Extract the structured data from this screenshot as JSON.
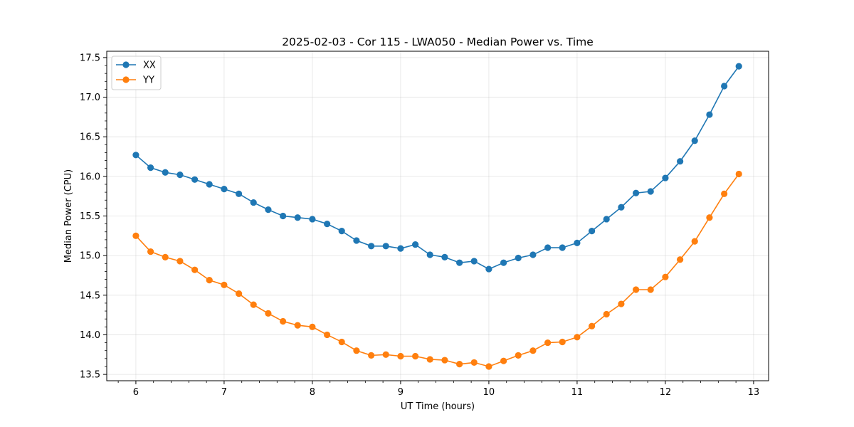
{
  "chart_data": {
    "type": "line",
    "title": "2025-02-03 - Cor 115 - LWA050 - Median Power vs. Time",
    "xlabel": "UT Time (hours)",
    "ylabel": "Median Power (CPU)",
    "xlim": [
      5.67,
      13.17
    ],
    "ylim": [
      13.42,
      17.58
    ],
    "xticks": [
      6,
      7,
      8,
      9,
      10,
      11,
      12,
      13
    ],
    "xtick_labels": [
      "6",
      "7",
      "8",
      "9",
      "10",
      "11",
      "12",
      "13"
    ],
    "yticks": [
      13.5,
      14.0,
      14.5,
      15.0,
      15.5,
      16.0,
      16.5,
      17.0,
      17.5
    ],
    "ytick_labels": [
      "13.5",
      "14.0",
      "14.5",
      "15.0",
      "15.5",
      "16.0",
      "16.5",
      "17.0",
      "17.5"
    ],
    "grid": true,
    "legend_position": "top-left",
    "x": [
      6.0,
      6.167,
      6.333,
      6.5,
      6.667,
      6.833,
      7.0,
      7.167,
      7.333,
      7.5,
      7.667,
      7.833,
      8.0,
      8.167,
      8.333,
      8.5,
      8.667,
      8.833,
      9.0,
      9.167,
      9.333,
      9.5,
      9.667,
      9.833,
      10.0,
      10.167,
      10.333,
      10.5,
      10.667,
      10.833,
      11.0,
      11.167,
      11.333,
      11.5,
      11.667,
      11.833,
      12.0,
      12.167,
      12.333,
      12.5,
      12.667,
      12.833
    ],
    "series": [
      {
        "name": "XX",
        "color": "#1f77b4",
        "values": [
          16.27,
          16.11,
          16.05,
          16.02,
          15.96,
          15.9,
          15.84,
          15.78,
          15.67,
          15.58,
          15.5,
          15.48,
          15.46,
          15.4,
          15.31,
          15.19,
          15.12,
          15.12,
          15.09,
          15.14,
          15.01,
          14.98,
          14.91,
          14.93,
          14.83,
          14.91,
          14.97,
          15.01,
          15.1,
          15.1,
          15.16,
          15.31,
          15.46,
          15.61,
          15.79,
          15.81,
          15.98,
          16.19,
          16.45,
          16.78,
          17.14,
          17.39
        ]
      },
      {
        "name": "YY",
        "color": "#ff7f0e",
        "values": [
          15.25,
          15.05,
          14.98,
          14.93,
          14.82,
          14.69,
          14.63,
          14.52,
          14.38,
          14.27,
          14.17,
          14.12,
          14.1,
          14.0,
          13.91,
          13.8,
          13.74,
          13.75,
          13.73,
          13.73,
          13.69,
          13.68,
          13.63,
          13.65,
          13.6,
          13.67,
          13.74,
          13.8,
          13.9,
          13.91,
          13.97,
          14.11,
          14.26,
          14.39,
          14.57,
          14.57,
          14.73,
          14.95,
          15.18,
          15.48,
          15.78,
          16.03
        ]
      }
    ]
  }
}
